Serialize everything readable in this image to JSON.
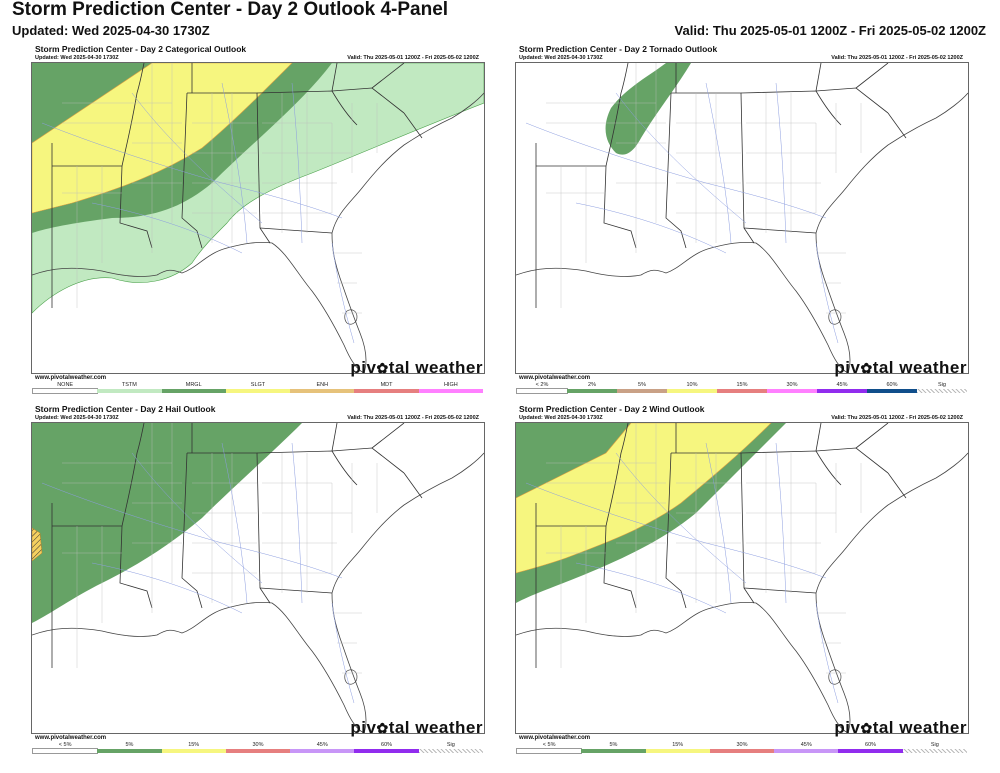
{
  "header": {
    "title": "Storm Prediction Center - Day 2 Outlook 4-Panel",
    "updated": "Updated: Wed 2025-04-30 1730Z",
    "valid": "Valid: Thu 2025-05-01 1200Z - Fri 2025-05-02 1200Z"
  },
  "panel_meta": {
    "updated": "Updated: Wed 2025-04-30 1730Z",
    "valid": "Valid: Thu 2025-05-01 1200Z - Fri 2025-05-02 1200Z",
    "credit": "www.pivotalweather.com",
    "logo_left": "piv",
    "logo_right": "tal weather",
    "logo_icon": "gear-star-icon"
  },
  "panels": [
    {
      "title": "Storm Prediction Center - Day 2 Categorical Outlook",
      "legend": [
        {
          "label": "NONE",
          "color": "#ffffff"
        },
        {
          "label": "TSTM",
          "color": "#c1e9c1"
        },
        {
          "label": "MRGL",
          "color": "#66a366"
        },
        {
          "label": "SLGT",
          "color": "#f6f67f"
        },
        {
          "label": "ENH",
          "color": "#e6c27a"
        },
        {
          "label": "MDT",
          "color": "#e67f7f"
        },
        {
          "label": "HIGH",
          "color": "#ff80ff"
        }
      ]
    },
    {
      "title": "Storm Prediction Center - Day 2 Tornado Outlook",
      "legend": [
        {
          "label": "< 2%",
          "color": "#ffffff"
        },
        {
          "label": "2%",
          "color": "#66a366"
        },
        {
          "label": "5%",
          "color": "#c9a186"
        },
        {
          "label": "10%",
          "color": "#f6f67f"
        },
        {
          "label": "15%",
          "color": "#e67f7f"
        },
        {
          "label": "30%",
          "color": "#ff80ff"
        },
        {
          "label": "45%",
          "color": "#912cee"
        },
        {
          "label": "60%",
          "color": "#104e8b"
        },
        {
          "label": "Sig",
          "color": "hatch"
        }
      ]
    },
    {
      "title": "Storm Prediction Center - Day 2 Hail Outlook",
      "legend": [
        {
          "label": "< 5%",
          "color": "#ffffff"
        },
        {
          "label": "5%",
          "color": "#66a366"
        },
        {
          "label": "15%",
          "color": "#f6f67f"
        },
        {
          "label": "30%",
          "color": "#e67f7f"
        },
        {
          "label": "45%",
          "color": "#c896f7"
        },
        {
          "label": "60%",
          "color": "#912cee"
        },
        {
          "label": "Sig",
          "color": "hatch"
        }
      ]
    },
    {
      "title": "Storm Prediction Center - Day 2 Wind Outlook",
      "legend": [
        {
          "label": "< 5%",
          "color": "#ffffff"
        },
        {
          "label": "5%",
          "color": "#66a366"
        },
        {
          "label": "15%",
          "color": "#f6f67f"
        },
        {
          "label": "30%",
          "color": "#e67f7f"
        },
        {
          "label": "45%",
          "color": "#c896f7"
        },
        {
          "label": "60%",
          "color": "#912cee"
        },
        {
          "label": "Sig",
          "color": "hatch"
        }
      ]
    }
  ]
}
